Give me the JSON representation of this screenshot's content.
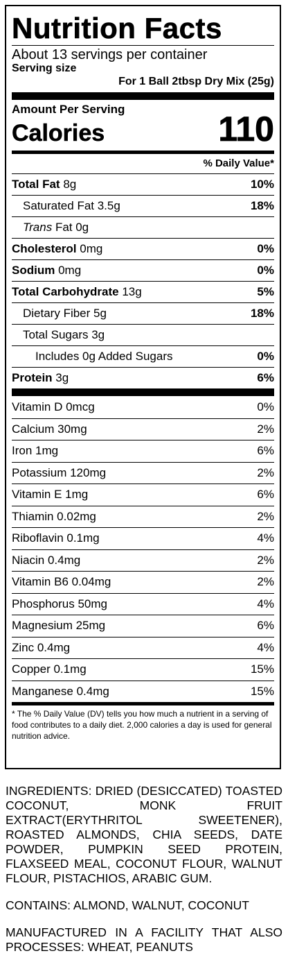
{
  "label": {
    "title": "Nutrition Facts",
    "servings_per_container": "About 13 servings per container",
    "serving_size_label": "Serving size",
    "serving_size_value": "For 1 Ball 2tbsp Dry Mix (25g)",
    "amount_per_serving": "Amount Per Serving",
    "calories_label": "Calories",
    "calories_value": "110",
    "daily_value_header": "% Daily Value*",
    "nutrients": [
      {
        "name": "Total Fat",
        "amount": "8g",
        "dv": "10%"
      },
      {
        "name": "Saturated Fat 3.5g",
        "amount": "",
        "dv": "18%"
      },
      {
        "name": "Trans",
        "amount": "Fat 0g",
        "dv": ""
      },
      {
        "name": "Cholesterol",
        "amount": "0mg",
        "dv": "0%"
      },
      {
        "name": "Sodium",
        "amount": "0mg",
        "dv": "0%"
      },
      {
        "name": "Total Carbohydrate",
        "amount": "13g",
        "dv": "5%"
      },
      {
        "name": "Dietary Fiber 5g",
        "amount": "",
        "dv": "18%"
      },
      {
        "name": "Total Sugars 3g",
        "amount": "",
        "dv": ""
      },
      {
        "name": "Includes 0g Added Sugars",
        "amount": "",
        "dv": "0%"
      },
      {
        "name": "Protein",
        "amount": "3g",
        "dv": "6%"
      }
    ],
    "vitamins": [
      {
        "name": "Vitamin D 0mcg",
        "dv": "0%"
      },
      {
        "name": "Calcium 30mg",
        "dv": "2%"
      },
      {
        "name": "Iron 1mg",
        "dv": "6%"
      },
      {
        "name": "Potassium 120mg",
        "dv": "2%"
      },
      {
        "name": "Vitamin E 1mg",
        "dv": "6%"
      },
      {
        "name": "Thiamin 0.02mg",
        "dv": "2%"
      },
      {
        "name": "Riboflavin 0.1mg",
        "dv": "4%"
      },
      {
        "name": "Niacin 0.4mg",
        "dv": "2%"
      },
      {
        "name": "Vitamin B6 0.04mg",
        "dv": "2%"
      },
      {
        "name": "Phosphorus 50mg",
        "dv": "4%"
      },
      {
        "name": "Magnesium 25mg",
        "dv": "6%"
      },
      {
        "name": "Zinc 0.4mg",
        "dv": "4%"
      },
      {
        "name": "Copper 0.1mg",
        "dv": "15%"
      },
      {
        "name": "Manganese 0.4mg",
        "dv": "15%"
      }
    ],
    "footnote": "* The % Daily Value (DV) tells you how much a nutrient in a serving of food contributes to a daily diet. 2,000 calories a day is used for general nutrition advice."
  },
  "ingredients": "INGREDIENTS: DRIED (DESICCATED) TOASTED COCONUT, MONK FRUIT EXTRACT(ERYTHRITOL SWEETENER), ROASTED ALMONDS, CHIA SEEDS, DATE POWDER, PUMPKIN SEED PROTEIN, FLAXSEED MEAL, COCONUT FLOUR, WALNUT FLOUR, PISTACHIOS, ARABIC GUM.",
  "contains": "CONTAINS: ALMOND, WALNUT, COCONUT",
  "facility": "MANUFACTURED IN A FACILITY THAT ALSO PROCESSES: WHEAT, PEANUTS"
}
